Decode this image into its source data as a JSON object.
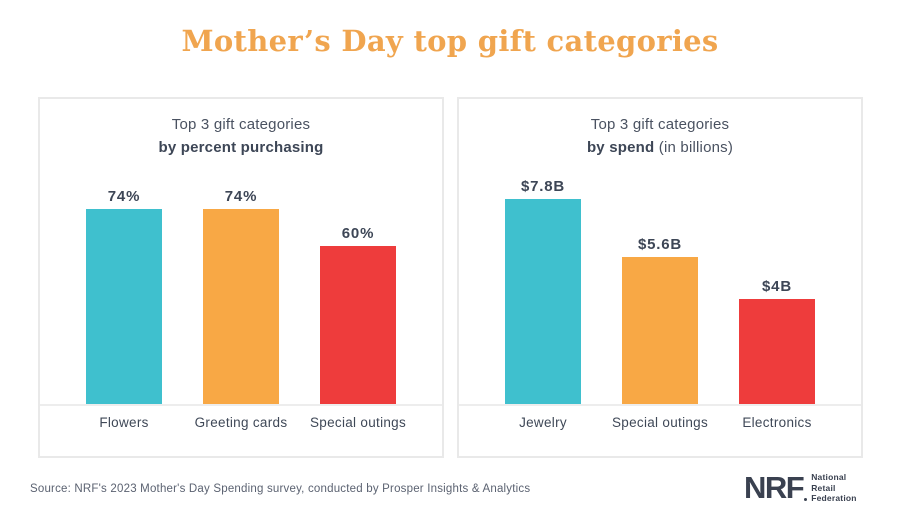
{
  "page": {
    "title": "Mother’s Day top gift categories"
  },
  "colors": {
    "title_gold": "#F0A54F",
    "navy_text": "#3D4656",
    "teal": "#3FC0CE",
    "orange": "#F8A845",
    "red": "#EE3C3C",
    "panel_border": "#E9E9E9",
    "baseline_gray": "#EDEDED",
    "source_text": "#5B6271",
    "logo_navy": "#3A4150"
  },
  "chart_data": [
    {
      "type": "bar",
      "title_line1": "Top 3 gift categories",
      "title_bold": "by percent purchasing",
      "title_suffix": "",
      "categories": [
        "Flowers",
        "Greeting cards",
        "Special outings"
      ],
      "values": [
        74,
        74,
        60
      ],
      "value_labels": [
        "74%",
        "74%",
        "60%"
      ],
      "bar_colors": [
        "#3FC0CE",
        "#F8A845",
        "#EE3C3C"
      ],
      "unit": "percent purchasing",
      "legend": "none",
      "grid": false,
      "value_label_position": "above"
    },
    {
      "type": "bar",
      "title_line1": "Top 3 gift categories",
      "title_bold": "by spend",
      "title_suffix": " (in billions)",
      "categories": [
        "Jewelry",
        "Special outings",
        "Electronics"
      ],
      "values": [
        7.8,
        5.6,
        4
      ],
      "value_labels": [
        "$7.8B",
        "$5.6B",
        "$4B"
      ],
      "bar_colors": [
        "#3FC0CE",
        "#F8A845",
        "#EE3C3C"
      ],
      "unit": "USD billions",
      "legend": "none",
      "grid": false,
      "value_label_position": "above"
    }
  ],
  "source": {
    "text": "Source: NRF's 2023 Mother's Day Spending survey, conducted by Prosper Insights & Analytics"
  },
  "logo": {
    "acronym": "NRF",
    "lines": [
      "National",
      "Retail",
      "Federation"
    ]
  }
}
